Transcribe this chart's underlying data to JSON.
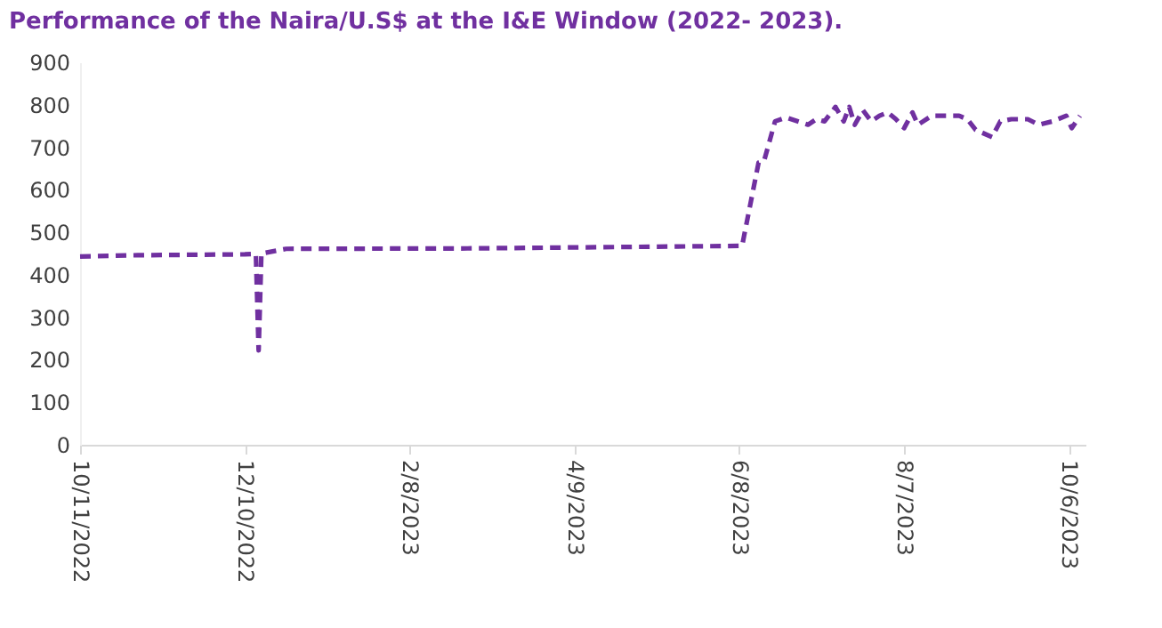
{
  "chart_data": {
    "type": "line",
    "title": "Performance of the Naira/U.S$ at the I&E Window (2022- 2023).",
    "x": [
      "2022-10-11",
      "2022-11-01",
      "2022-12-10",
      "2022-12-14",
      "2022-12-15",
      "2022-12-16",
      "2022-12-25",
      "2023-03-01",
      "2023-06-09",
      "2023-06-15",
      "2023-06-17",
      "2023-06-21",
      "2023-06-25",
      "2023-07-03",
      "2023-07-06",
      "2023-07-09",
      "2023-07-13",
      "2023-07-16",
      "2023-07-18",
      "2023-07-20",
      "2023-07-23",
      "2023-07-26",
      "2023-07-29",
      "2023-08-01",
      "2023-08-04",
      "2023-08-07",
      "2023-08-10",
      "2023-08-12",
      "2023-08-17",
      "2023-08-27",
      "2023-08-30",
      "2023-09-02",
      "2023-09-08",
      "2023-09-11",
      "2023-09-15",
      "2023-09-21",
      "2023-09-25",
      "2023-09-30",
      "2023-10-05",
      "2023-10-07",
      "2023-10-10"
    ],
    "series": [
      {
        "color": "#7030a0",
        "values": [
          443,
          446,
          448,
          449,
          222,
          450,
          461,
          462,
          468,
          664,
          668,
          761,
          770,
          753,
          766,
          761,
          795,
          761,
          795,
          753,
          787,
          761,
          774,
          782,
          766,
          745,
          782,
          753,
          774,
          774,
          766,
          741,
          724,
          761,
          766,
          766,
          753,
          761,
          774,
          745,
          774
        ]
      }
    ],
    "xlim": [
      "2022-10-11",
      "2023-10-12"
    ],
    "xticks": [
      {
        "value": "2022-10-11",
        "label": "10/11/2022"
      },
      {
        "value": "2022-12-10",
        "label": "12/10/2022"
      },
      {
        "value": "2023-02-08",
        "label": "2/8/2023"
      },
      {
        "value": "2023-04-09",
        "label": "4/9/2023"
      },
      {
        "value": "2023-06-08",
        "label": "6/8/2023"
      },
      {
        "value": "2023-08-07",
        "label": "8/7/2023"
      },
      {
        "value": "2023-10-06",
        "label": "10/6/2023"
      }
    ],
    "ylim": [
      0,
      900
    ],
    "yticks": [
      0,
      100,
      200,
      300,
      400,
      500,
      600,
      700,
      800,
      900
    ],
    "grid": false,
    "marker": "none",
    "line_style": "dashed"
  }
}
